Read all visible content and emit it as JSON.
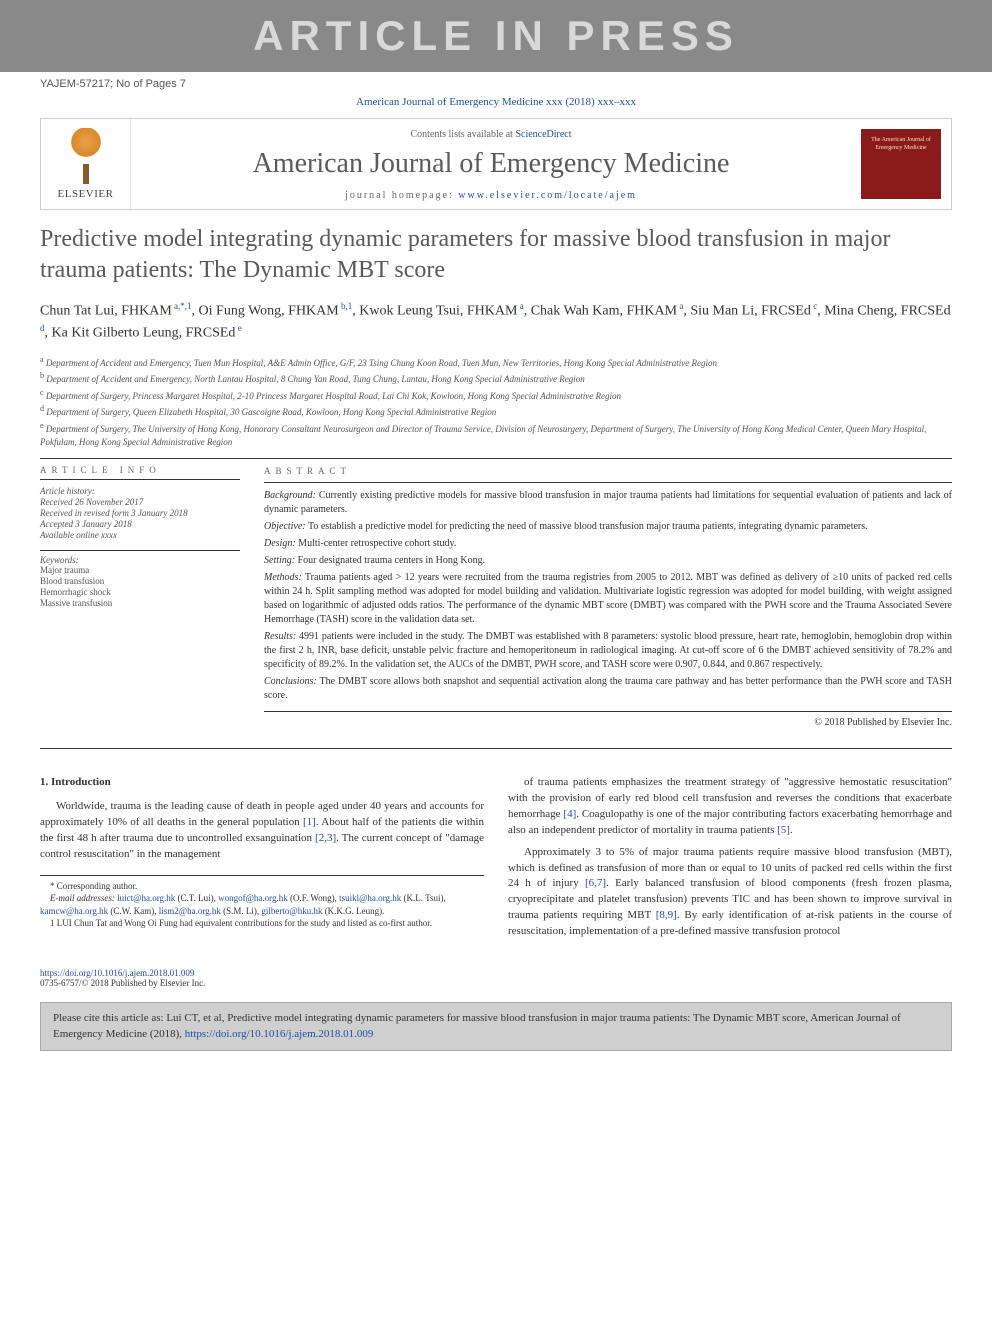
{
  "watermark": "ARTICLE IN PRESS",
  "doc_id": "YAJEM-57217; No of Pages 7",
  "journal_ref_top": "American Journal of Emergency Medicine xxx (2018) xxx–xxx",
  "header": {
    "contents_prefix": "Contents lists available at ",
    "contents_link": "ScienceDirect",
    "journal_name": "American Journal of Emergency Medicine",
    "homepage_prefix": "journal homepage: ",
    "homepage_url": "www.elsevier.com/locate/ajem",
    "publisher": "ELSEVIER",
    "cover_text": "The American Journal of Emergency Medicine"
  },
  "title": "Predictive model integrating dynamic parameters for massive blood transfusion in major trauma patients: The Dynamic MBT score",
  "authors_html": "Chun Tat Lui, FHKAM<sup> a,*,1</sup>, Oi Fung Wong, FHKAM<sup> b,1</sup>, Kwok Leung Tsui, FHKAM<sup> a</sup>, Chak Wah Kam, FHKAM<sup> a</sup>, Siu Man Li, FRCSEd<sup> c</sup>, Mina Cheng, FRCSEd<sup> d</sup>, Ka Kit Gilberto Leung, FRCSEd<sup> e</sup>",
  "affiliations": [
    "a Department of Accident and Emergency, Tuen Mun Hospital, A&E Admin Office, G/F, 23 Tsing Chung Koon Road, Tuen Mun, New Territories, Hong Kong Special Administrative Region",
    "b Department of Accident and Emergency, North Lantau Hospital, 8 Chung Yan Road, Tung Chung, Lantau, Hong Kong Special Administrative Region",
    "c Department of Surgery, Princess Margaret Hospital, 2-10 Princess Margaret Hospital Road, Lai Chi Kok, Kowloon, Hong Kong Special Administrative Region",
    "d Department of Surgery, Queen Elizabeth Hospital, 30 Gascoigne Road, Kowloon, Hong Kong Special Administrative Region",
    "e Department of Surgery, The University of Hong Kong, Honorary Consultant Neurosurgeon and Director of Trauma Service, Division of Neurosurgery, Department of Surgery, The University of Hong Kong Medical Center, Queen Mary Hospital, Pokfulam, Hong Kong Special Administrative Region"
  ],
  "article_info": {
    "heading": "article info",
    "history_label": "Article history:",
    "history": [
      "Received 26 November 2017",
      "Received in revised form 3 January 2018",
      "Accepted 3 January 2018",
      "Available online xxxx"
    ],
    "keywords_label": "Keywords:",
    "keywords": [
      "Major trauma",
      "Blood transfusion",
      "Hemorrhagic shock",
      "Massive transfusion"
    ]
  },
  "abstract": {
    "heading": "abstract",
    "sections": [
      {
        "label": "Background:",
        "text": " Currently existing predictive models for massive blood transfusion in major trauma patients had limitations for sequential evaluation of patients and lack of dynamic parameters."
      },
      {
        "label": "Objective:",
        "text": " To establish a predictive model for predicting the need of massive blood transfusion major trauma patients, integrating dynamic parameters."
      },
      {
        "label": "Design:",
        "text": " Multi-center retrospective cohort study."
      },
      {
        "label": "Setting:",
        "text": " Four designated trauma centers in Hong Kong."
      },
      {
        "label": "Methods:",
        "text": " Trauma patients aged > 12 years were recruited from the trauma registries from 2005 to 2012. MBT was defined as delivery of ≥10 units of packed red cells within 24 h. Split sampling method was adopted for model building and validation. Multivariate logistic regression was adopted for model building, with weight assigned based on logarithmic of adjusted odds ratios. The performance of the dynamic MBT score (DMBT) was compared with the PWH score and the Trauma Associated Severe Hemorrhage (TASH) score in the validation data set."
      },
      {
        "label": "Results:",
        "text": " 4991 patients were included in the study. The DMBT was established with 8 parameters: systolic blood pressure, heart rate, hemoglobin, hemoglobin drop within the first 2 h, INR, base deficit, unstable pelvic fracture and hemoperitoneum in radiological imaging. At cut-off score of 6 the DMBT achieved sensitivity of 78.2% and specificity of 89.2%. In the validation set, the AUCs of the DMBT, PWH score, and TASH score were 0.907, 0.844, and 0.867 respectively."
      },
      {
        "label": "Conclusions:",
        "text": " The DMBT score allows both snapshot and sequential activation along the trauma care pathway and has better performance than the PWH score and TASH score."
      }
    ],
    "copyright": "© 2018 Published by Elsevier Inc."
  },
  "intro": {
    "heading": "1. Introduction",
    "col1_p1": "Worldwide, trauma is the leading cause of death in people aged under 40 years and accounts for approximately 10% of all deaths in the general population [1]. About half of the patients die within the first 48 h after trauma due to uncontrolled exsanguination [2,3]. The current concept of \"damage control resuscitation\" in the management",
    "col2_p1": "of trauma patients emphasizes the treatment strategy of \"aggressive hemostatic resuscitation\" with the provision of early red blood cell transfusion and reverses the conditions that exacerbate hemorrhage [4]. Coagulopathy is one of the major contributing factors exacerbating hemorrhage and also an independent predictor of mortality in trauma patients [5].",
    "col2_p2": "Approximately 3 to 5% of major trauma patients require massive blood transfusion (MBT), which is defined as transfusion of more than or equal to 10 units of packed red cells within the first 24 h of injury [6,7]. Early balanced transfusion of blood components (fresh frozen plasma, cryoprecipitate and platelet transfusion) prevents TIC and has been shown to improve survival in trauma patients requiring MBT [8,9]. By early identification of at-risk patients in the course of resuscitation, implementation of a pre-defined massive transfusion protocol"
  },
  "footnotes": {
    "corresponding": "* Corresponding author.",
    "email_label": "E-mail addresses: ",
    "emails": [
      {
        "addr": "luict@ha.org.hk",
        "who": "(C.T. Lui)"
      },
      {
        "addr": "wongof@ha.org.hk",
        "who": "(O.F. Wong)"
      },
      {
        "addr": "tsuikl@ha.org.hk",
        "who": "(K.L. Tsui)"
      },
      {
        "addr": "kamcw@ha.org.hk",
        "who": "(C.W. Kam)"
      },
      {
        "addr": "lism2@ha.org.hk",
        "who": "(S.M. Li)"
      },
      {
        "addr": "gilberto@hku.hk",
        "who": "(K.K.G. Leung)"
      }
    ],
    "note1": "1 LUI Chun Tat and Wong Oi Fung had equivalent contributions for the study and listed as co-first author."
  },
  "doi": {
    "url": "https://doi.org/10.1016/j.ajem.2018.01.009",
    "issn_line": "0735-6757/© 2018 Published by Elsevier Inc."
  },
  "cite_box": {
    "text": "Please cite this article as: Lui CT, et al, Predictive model integrating dynamic parameters for massive blood transfusion in major trauma patients: The Dynamic MBT score, American Journal of Emergency Medicine (2018), ",
    "url": "https://doi.org/10.1016/j.ajem.2018.01.009"
  },
  "colors": {
    "watermark_bg": "#898989",
    "watermark_fg": "#d8d8d8",
    "link": "#1e4fa3",
    "title_color": "#5a5a5a",
    "cite_bg": "#cfcfcf",
    "cover_bg": "#8b1a1a"
  }
}
